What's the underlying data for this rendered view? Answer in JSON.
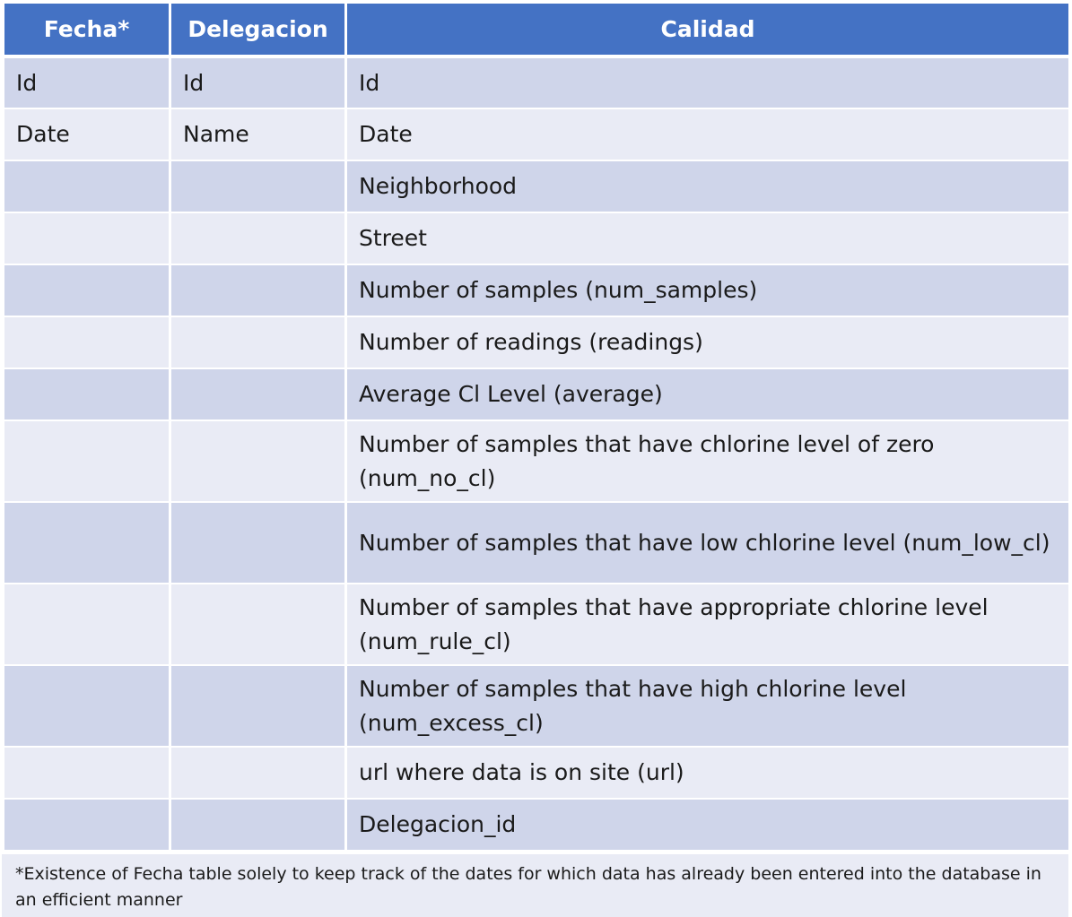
{
  "table": {
    "headers": [
      "Fecha*",
      "Delegacion",
      "Calidad"
    ],
    "rows": [
      [
        "Id",
        "Id",
        "Id"
      ],
      [
        "Date",
        "Name",
        "Date"
      ],
      [
        "",
        "",
        "Neighborhood"
      ],
      [
        "",
        "",
        "Street"
      ],
      [
        "",
        "",
        "Number of samples (num_samples)"
      ],
      [
        "",
        "",
        "Number of readings (readings)"
      ],
      [
        "",
        "",
        "Average Cl Level (average)"
      ],
      [
        "",
        "",
        "Number of samples that have chlorine level of zero (num_no_cl)"
      ],
      [
        "",
        "",
        "Number of samples that have low chlorine level (num_low_cl)"
      ],
      [
        "",
        "",
        "Number of samples that have appropriate chlorine level (num_rule_cl)"
      ],
      [
        "",
        "",
        "Number of samples that have high chlorine level (num_excess_cl)"
      ],
      [
        "",
        "",
        "url where data is on site (url)"
      ],
      [
        "",
        "",
        "Delegacion_id"
      ]
    ]
  },
  "footnote": "*Existence of Fecha table solely to keep track of the dates for which data has already been entered into the database in an efficient manner",
  "colors": {
    "header_bg": "#4472c4",
    "row_odd_bg": "#cfd5ea",
    "row_even_bg": "#e9ebf5"
  }
}
